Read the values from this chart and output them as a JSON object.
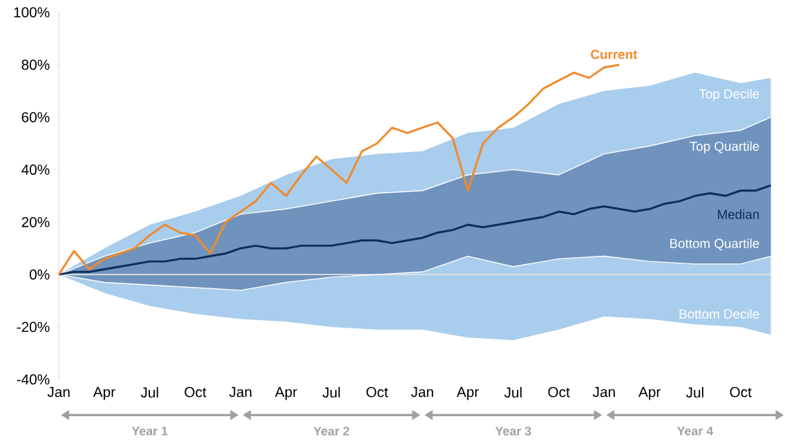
{
  "chart_data": {
    "type": "area",
    "categories": [
      "Jan",
      null,
      null,
      "Apr",
      null,
      null,
      "Jul",
      null,
      null,
      "Oct",
      null,
      null,
      "Jan",
      null,
      null,
      "Apr",
      null,
      null,
      "Jul",
      null,
      null,
      "Oct",
      null,
      null,
      "Jan",
      null,
      null,
      "Apr",
      null,
      null,
      "Jul",
      null,
      null,
      "Oct",
      null,
      null,
      "Jan",
      null,
      null,
      "Apr",
      null,
      null,
      "Jul",
      null,
      null,
      "Oct",
      null,
      null
    ],
    "ylim": [
      -40,
      100
    ],
    "yticks": [
      {
        "value": -40,
        "label": "-40%"
      },
      {
        "value": -20,
        "label": "-20%"
      },
      {
        "value": 0,
        "label": "0%"
      },
      {
        "value": 20,
        "label": "20%"
      },
      {
        "value": 40,
        "label": "40%"
      },
      {
        "value": 60,
        "label": "60%"
      },
      {
        "value": 80,
        "label": "80%"
      },
      {
        "value": 100,
        "label": "100%"
      }
    ],
    "series": [
      {
        "name": "Top Decile",
        "color": "#a9cdec",
        "values": [
          0,
          null,
          null,
          10,
          null,
          null,
          19,
          null,
          null,
          24,
          null,
          null,
          30,
          null,
          null,
          38,
          null,
          null,
          44,
          null,
          null,
          46,
          null,
          null,
          47,
          null,
          null,
          54,
          null,
          null,
          56,
          null,
          null,
          65,
          null,
          null,
          70,
          null,
          null,
          72,
          null,
          null,
          77,
          null,
          null,
          73,
          null,
          75
        ]
      },
      {
        "name": "Bottom Decile",
        "color": "#a9cdec",
        "values": [
          0,
          null,
          null,
          -7,
          null,
          null,
          -12,
          null,
          null,
          -15,
          null,
          null,
          -17,
          null,
          null,
          -18,
          null,
          null,
          -20,
          null,
          null,
          -21,
          null,
          null,
          -21,
          null,
          null,
          -24,
          null,
          null,
          -25,
          null,
          null,
          -21,
          null,
          null,
          -16,
          null,
          null,
          -17,
          null,
          null,
          -19,
          null,
          null,
          -20,
          null,
          -23
        ]
      },
      {
        "name": "Top Quartile",
        "type": "line",
        "color": "#ffffff",
        "values": [
          0,
          null,
          null,
          7,
          null,
          null,
          12,
          null,
          null,
          16,
          null,
          null,
          23,
          null,
          null,
          25,
          null,
          null,
          28,
          null,
          null,
          31,
          null,
          null,
          32,
          null,
          null,
          38,
          null,
          null,
          40,
          null,
          null,
          38,
          null,
          null,
          46,
          null,
          null,
          49,
          null,
          null,
          53,
          null,
          null,
          55,
          null,
          60
        ]
      },
      {
        "name": "Bottom Quartile",
        "type": "line",
        "color": "#ffffff",
        "values": [
          0,
          null,
          null,
          -3,
          null,
          null,
          -4,
          null,
          null,
          -5,
          null,
          null,
          -6,
          null,
          null,
          -3,
          null,
          null,
          -1,
          null,
          null,
          0,
          null,
          null,
          1,
          null,
          null,
          7,
          null,
          null,
          3,
          null,
          null,
          6,
          null,
          null,
          7,
          null,
          null,
          5,
          null,
          null,
          4,
          null,
          null,
          4,
          null,
          7
        ]
      },
      {
        "name": "Median",
        "type": "line",
        "color": "#0b2d5b",
        "values": [
          0,
          1,
          1,
          2,
          3,
          4,
          5,
          5,
          6,
          6,
          7,
          8,
          10,
          11,
          10,
          10,
          11,
          11,
          11,
          12,
          13,
          13,
          12,
          13,
          14,
          16,
          17,
          19,
          18,
          19,
          20,
          21,
          22,
          24,
          23,
          25,
          26,
          25,
          24,
          25,
          27,
          28,
          30,
          31,
          30,
          32,
          32,
          34
        ],
        "lower": [
          0,
          null,
          null,
          -3,
          null,
          null,
          -4,
          null,
          null,
          -5,
          null,
          null,
          -6,
          null,
          null,
          -3,
          null,
          null,
          -1,
          null,
          null,
          0,
          null,
          null,
          1,
          null,
          null,
          7,
          null,
          null,
          3,
          null,
          null,
          6,
          null,
          null,
          7,
          null,
          null,
          5,
          null,
          null,
          4,
          null,
          null,
          4,
          null,
          7
        ],
        "upper": [
          0,
          null,
          null,
          7,
          null,
          null,
          12,
          null,
          null,
          16,
          null,
          null,
          23,
          null,
          null,
          25,
          null,
          null,
          28,
          null,
          null,
          31,
          null,
          null,
          32,
          null,
          null,
          38,
          null,
          null,
          40,
          null,
          null,
          38,
          null,
          null,
          46,
          null,
          null,
          49,
          null,
          null,
          53,
          null,
          null,
          55,
          null,
          60
        ]
      },
      {
        "name": "Current",
        "type": "line",
        "color": "#f08a2c",
        "values": [
          0,
          9,
          2,
          6,
          8,
          10,
          15,
          19,
          16,
          15,
          8,
          20,
          24,
          28,
          35,
          30,
          38,
          45,
          40,
          35,
          47,
          50,
          56,
          54,
          56,
          58,
          52,
          32,
          50,
          56,
          60,
          65,
          71,
          74,
          77,
          75,
          79,
          80,
          null,
          null,
          null,
          null,
          null,
          null,
          null,
          null,
          null,
          null
        ]
      }
    ],
    "ref_lines": [
      {
        "axis": "y",
        "value": 0,
        "color": "#e4e4e4"
      }
    ],
    "annotations": [
      "Year 1",
      "Year 2",
      "Year 3",
      "Year 4"
    ]
  }
}
